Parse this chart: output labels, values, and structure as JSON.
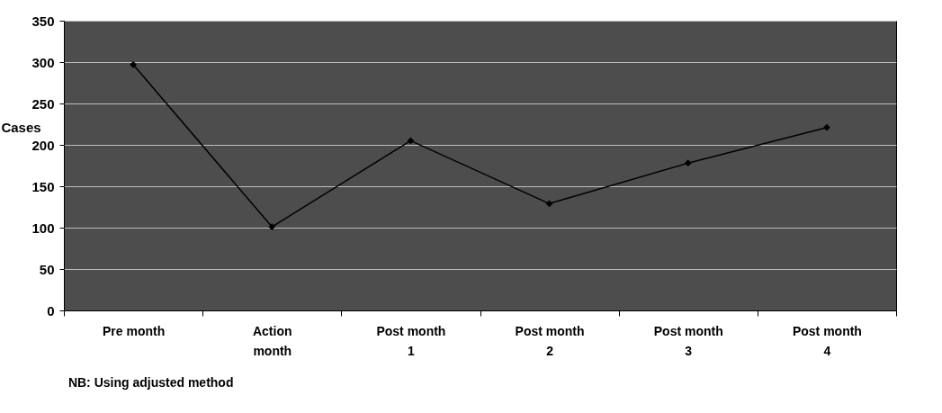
{
  "chart_data": {
    "type": "line",
    "ylabel": "Cases",
    "categories": [
      "Pre month",
      "Action month",
      "Post month 1",
      "Post month 2",
      "Post month 3",
      "Post month 4"
    ],
    "series": [
      {
        "color": "#000000",
        "values": [
          297,
          101,
          205,
          129,
          178,
          221
        ]
      }
    ],
    "ylim": [
      0,
      350
    ],
    "yticks": [
      0,
      50,
      100,
      150,
      200,
      250,
      300,
      350
    ],
    "grid": "y",
    "marker": "diamond",
    "line_style": "solid",
    "annotations": [
      "NB: Using adjusted method"
    ]
  }
}
